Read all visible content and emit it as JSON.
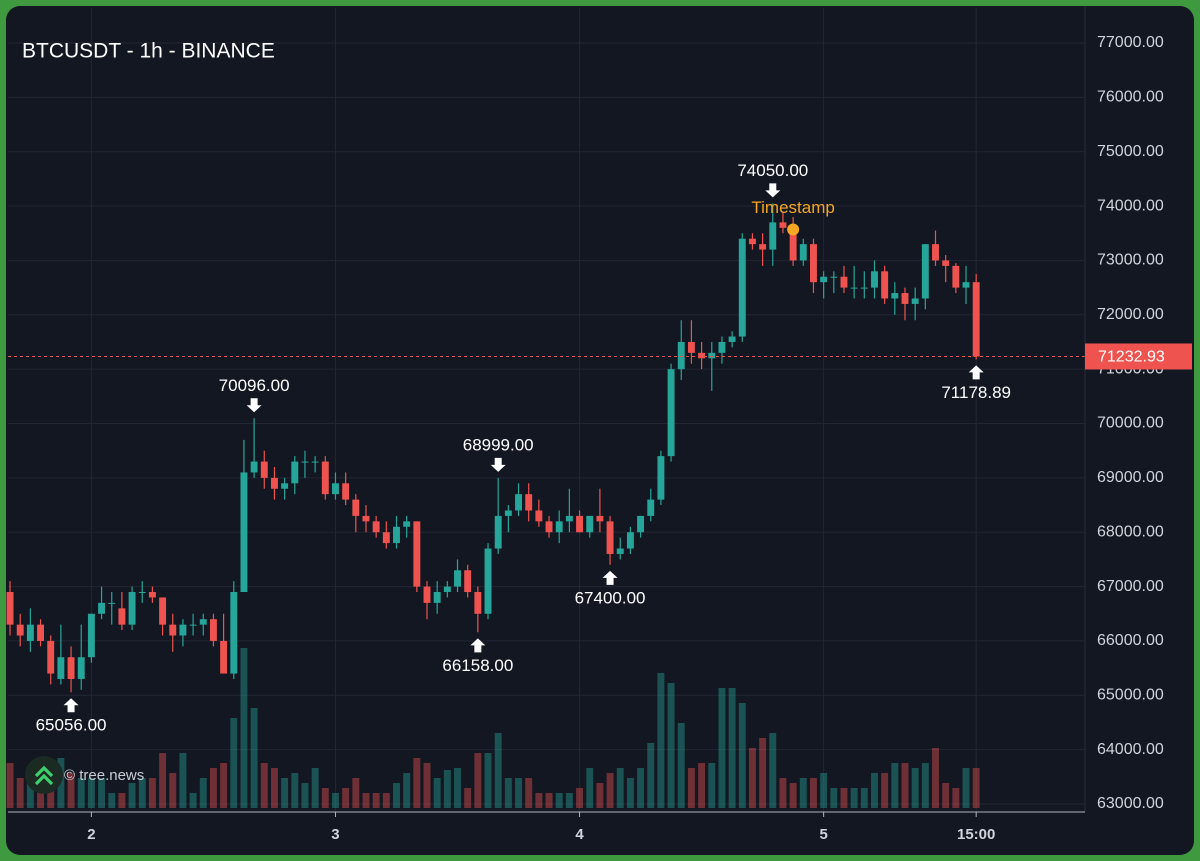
{
  "chart_data": {
    "type": "candlestick",
    "title": "BTCUSDT - 1h - BINANCE",
    "up_color": "#26a69a",
    "down_color": "#ef5350",
    "grid": true,
    "candles": [
      [
        66900,
        67100,
        66100,
        66300
      ],
      [
        66300,
        66500,
        65900,
        66100
      ],
      [
        66000,
        66600,
        65800,
        66300
      ],
      [
        66300,
        66400,
        65900,
        66000
      ],
      [
        66000,
        66100,
        65200,
        65400
      ],
      [
        65300,
        66300,
        65200,
        65700
      ],
      [
        65700,
        65900,
        65056,
        65300
      ],
      [
        65300,
        66300,
        65100,
        65700
      ],
      [
        65700,
        66500,
        65600,
        66500
      ],
      [
        66500,
        67000,
        66400,
        66700
      ],
      [
        66700,
        66900,
        66300,
        66700
      ],
      [
        66600,
        66900,
        66200,
        66300
      ],
      [
        66300,
        67000,
        66200,
        66900
      ],
      [
        66900,
        67100,
        66700,
        66900
      ],
      [
        66900,
        67000,
        66700,
        66800
      ],
      [
        66800,
        66800,
        66100,
        66300
      ],
      [
        66300,
        66500,
        65800,
        66100
      ],
      [
        66100,
        66400,
        65900,
        66300
      ],
      [
        66300,
        66500,
        66100,
        66300
      ],
      [
        66300,
        66500,
        66100,
        66400
      ],
      [
        66400,
        66500,
        65900,
        66000
      ],
      [
        66000,
        66500,
        65400,
        65400
      ],
      [
        65400,
        67100,
        65300,
        66900
      ],
      [
        66900,
        69700,
        66900,
        69100
      ],
      [
        69100,
        70096,
        69000,
        69300
      ],
      [
        69300,
        69500,
        68800,
        69000
      ],
      [
        69000,
        69200,
        68600,
        68800
      ],
      [
        68800,
        69000,
        68600,
        68900
      ],
      [
        68900,
        69400,
        68700,
        69300
      ],
      [
        69300,
        69500,
        69000,
        69300
      ],
      [
        69300,
        69400,
        69100,
        69300
      ],
      [
        69300,
        69400,
        68600,
        68700
      ],
      [
        68700,
        69100,
        68600,
        68900
      ],
      [
        68900,
        69100,
        68500,
        68600
      ],
      [
        68600,
        68700,
        68000,
        68300
      ],
      [
        68300,
        68500,
        68000,
        68200
      ],
      [
        68200,
        68300,
        67900,
        68000
      ],
      [
        68000,
        68200,
        67700,
        67800
      ],
      [
        67800,
        68300,
        67700,
        68100
      ],
      [
        68100,
        68300,
        67900,
        68200
      ],
      [
        68200,
        68200,
        66900,
        67000
      ],
      [
        67000,
        67100,
        66400,
        66700
      ],
      [
        66700,
        67100,
        66500,
        66900
      ],
      [
        66900,
        67100,
        66800,
        67000
      ],
      [
        67000,
        67500,
        66900,
        67300
      ],
      [
        67300,
        67400,
        66800,
        66900
      ],
      [
        66900,
        67000,
        66158,
        66500
      ],
      [
        66500,
        67800,
        66400,
        67700
      ],
      [
        67700,
        68999,
        67600,
        68300
      ],
      [
        68300,
        68500,
        68000,
        68400
      ],
      [
        68400,
        68900,
        68300,
        68700
      ],
      [
        68700,
        68900,
        68200,
        68400
      ],
      [
        68400,
        68600,
        68100,
        68200
      ],
      [
        68200,
        68300,
        67900,
        68000
      ],
      [
        68000,
        68400,
        67800,
        68200
      ],
      [
        68200,
        68800,
        68000,
        68300
      ],
      [
        68300,
        68400,
        68000,
        68000
      ],
      [
        68000,
        68300,
        67900,
        68300
      ],
      [
        68300,
        68800,
        68000,
        68200
      ],
      [
        68200,
        68300,
        67400,
        67600
      ],
      [
        67600,
        67900,
        67500,
        67700
      ],
      [
        67700,
        68100,
        67600,
        68000
      ],
      [
        68000,
        68300,
        67900,
        68300
      ],
      [
        68300,
        68800,
        68200,
        68600
      ],
      [
        68600,
        69500,
        68500,
        69400
      ],
      [
        69400,
        71100,
        69300,
        71000
      ],
      [
        71000,
        71900,
        70800,
        71500
      ],
      [
        71500,
        71900,
        71100,
        71300
      ],
      [
        71300,
        71500,
        71000,
        71200
      ],
      [
        71200,
        71500,
        70600,
        71300
      ],
      [
        71300,
        71600,
        71100,
        71500
      ],
      [
        71500,
        71700,
        71400,
        71600
      ],
      [
        71600,
        73500,
        71500,
        73400
      ],
      [
        73400,
        73500,
        73200,
        73300
      ],
      [
        73300,
        73500,
        72900,
        73200
      ],
      [
        73200,
        74050,
        72900,
        73700
      ],
      [
        73700,
        73900,
        73500,
        73600
      ],
      [
        73600,
        73800,
        72900,
        73000
      ],
      [
        73000,
        73400,
        72900,
        73300
      ],
      [
        73300,
        73400,
        72400,
        72600
      ],
      [
        72600,
        72800,
        72300,
        72700
      ],
      [
        72700,
        72800,
        72400,
        72700
      ],
      [
        72700,
        72900,
        72400,
        72500
      ],
      [
        72500,
        72900,
        72300,
        72500
      ],
      [
        72500,
        72800,
        72300,
        72500
      ],
      [
        72500,
        73000,
        72300,
        72800
      ],
      [
        72800,
        72900,
        72200,
        72300
      ],
      [
        72300,
        72600,
        72000,
        72400
      ],
      [
        72400,
        72500,
        71900,
        72200
      ],
      [
        72200,
        72500,
        71900,
        72300
      ],
      [
        72300,
        73300,
        72100,
        73300
      ],
      [
        73300,
        73550,
        72900,
        73000
      ],
      [
        73000,
        73100,
        72600,
        72900
      ],
      [
        72900,
        72950,
        72400,
        72500
      ],
      [
        72500,
        72900,
        72200,
        72600
      ],
      [
        72600,
        72750,
        71178.89,
        71232.93
      ]
    ],
    "volume": [
      45,
      30,
      30,
      40,
      25,
      50,
      35,
      30,
      30,
      30,
      15,
      15,
      25,
      30,
      30,
      55,
      35,
      55,
      15,
      30,
      40,
      45,
      90,
      160,
      100,
      45,
      40,
      30,
      35,
      25,
      40,
      20,
      15,
      20,
      30,
      15,
      15,
      15,
      25,
      35,
      50,
      45,
      30,
      38,
      40,
      20,
      55,
      55,
      75,
      30,
      30,
      30,
      15,
      15,
      15,
      15,
      20,
      40,
      25,
      35,
      40,
      30,
      40,
      65,
      135,
      125,
      85,
      40,
      45,
      45,
      120,
      120,
      105,
      60,
      70,
      75,
      30,
      25,
      30,
      30,
      35,
      20,
      20,
      20,
      20,
      35,
      35,
      45,
      45,
      40,
      45,
      60,
      25,
      20,
      40,
      40
    ],
    "xlim": [
      -0.2,
      105.7
    ],
    "xticks": [
      {
        "value": 8,
        "label": "2"
      },
      {
        "value": 32,
        "label": "3"
      },
      {
        "value": 56,
        "label": "4"
      },
      {
        "value": 80,
        "label": "5"
      },
      {
        "value": 95,
        "label": "15:00"
      }
    ],
    "ylim": [
      62853,
      77644
    ],
    "yticks": [
      {
        "value": 63000,
        "label": "63000.00"
      },
      {
        "value": 64000,
        "label": "64000.00"
      },
      {
        "value": 65000,
        "label": "65000.00"
      },
      {
        "value": 66000,
        "label": "66000.00"
      },
      {
        "value": 67000,
        "label": "67000.00"
      },
      {
        "value": 68000,
        "label": "68000.00"
      },
      {
        "value": 69000,
        "label": "69000.00"
      },
      {
        "value": 70000,
        "label": "70000.00"
      },
      {
        "value": 71000,
        "label": "71000.00"
      },
      {
        "value": 72000,
        "label": "72000.00"
      },
      {
        "value": 73000,
        "label": "73000.00"
      },
      {
        "value": 74000,
        "label": "74000.00"
      },
      {
        "value": 75000,
        "label": "75000.00"
      },
      {
        "value": 76000,
        "label": "76000.00"
      },
      {
        "value": 77000,
        "label": "77000.00"
      }
    ],
    "current_price_label": "71232.93",
    "annotations": [
      {
        "index": 6,
        "label": "65056.00",
        "position": "below"
      },
      {
        "index": 24,
        "label": "70096.00",
        "position": "above"
      },
      {
        "index": 46,
        "label": "66158.00",
        "position": "below"
      },
      {
        "index": 48,
        "label": "68999.00",
        "position": "above"
      },
      {
        "index": 59,
        "label": "67400.00",
        "position": "below"
      },
      {
        "index": 75,
        "label": "74050.00",
        "position": "above"
      },
      {
        "index": 95,
        "label": "71178.89",
        "position": "below"
      }
    ],
    "marker": {
      "label": "Timestamp",
      "index": 77,
      "value": 73570,
      "color": "#f5a623"
    },
    "watermark": "© tree.news"
  }
}
